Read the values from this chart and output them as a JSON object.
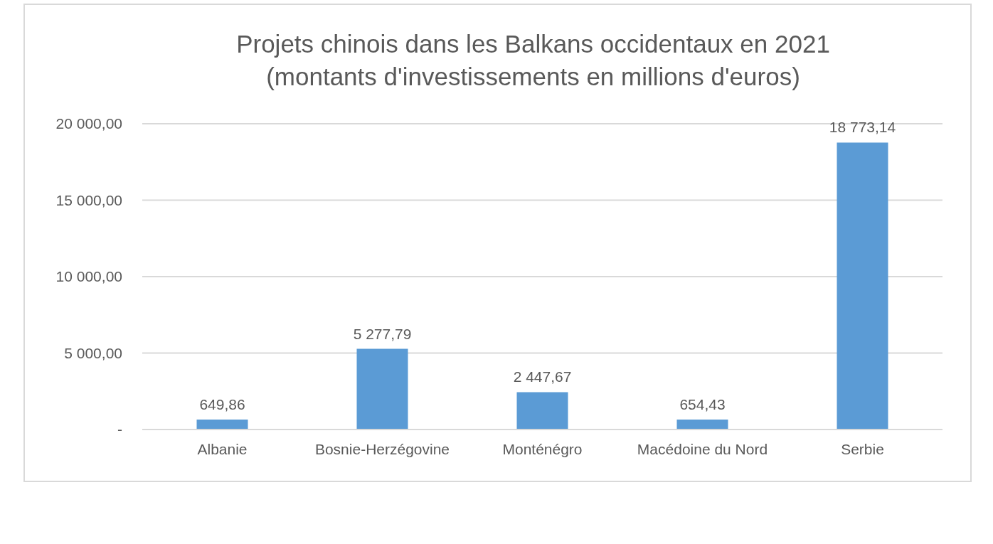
{
  "chart_data": {
    "type": "bar",
    "title": "Projets chinois dans les Balkans occidentaux en 2021\n(montants d'investissements en millions d'euros)",
    "categories": [
      "Albanie",
      "Bosnie-Herzégovine",
      "Monténégro",
      "Macédoine du Nord",
      "Serbie"
    ],
    "values": [
      649.86,
      5277.79,
      2447.67,
      654.43,
      18773.14
    ],
    "value_labels": [
      "649,86",
      "5 277,79",
      "2 447,67",
      "654,43",
      "18 773,14"
    ],
    "color": "#5b9bd5",
    "ylim": [
      0,
      20000
    ],
    "yticks": [
      {
        "value": 0,
        "label": "-"
      },
      {
        "value": 5000,
        "label": "5 000,00"
      },
      {
        "value": 10000,
        "label": "10 000,00"
      },
      {
        "value": 15000,
        "label": "15 000,00"
      },
      {
        "value": 20000,
        "label": "20 000,00"
      }
    ],
    "grid": "y"
  }
}
